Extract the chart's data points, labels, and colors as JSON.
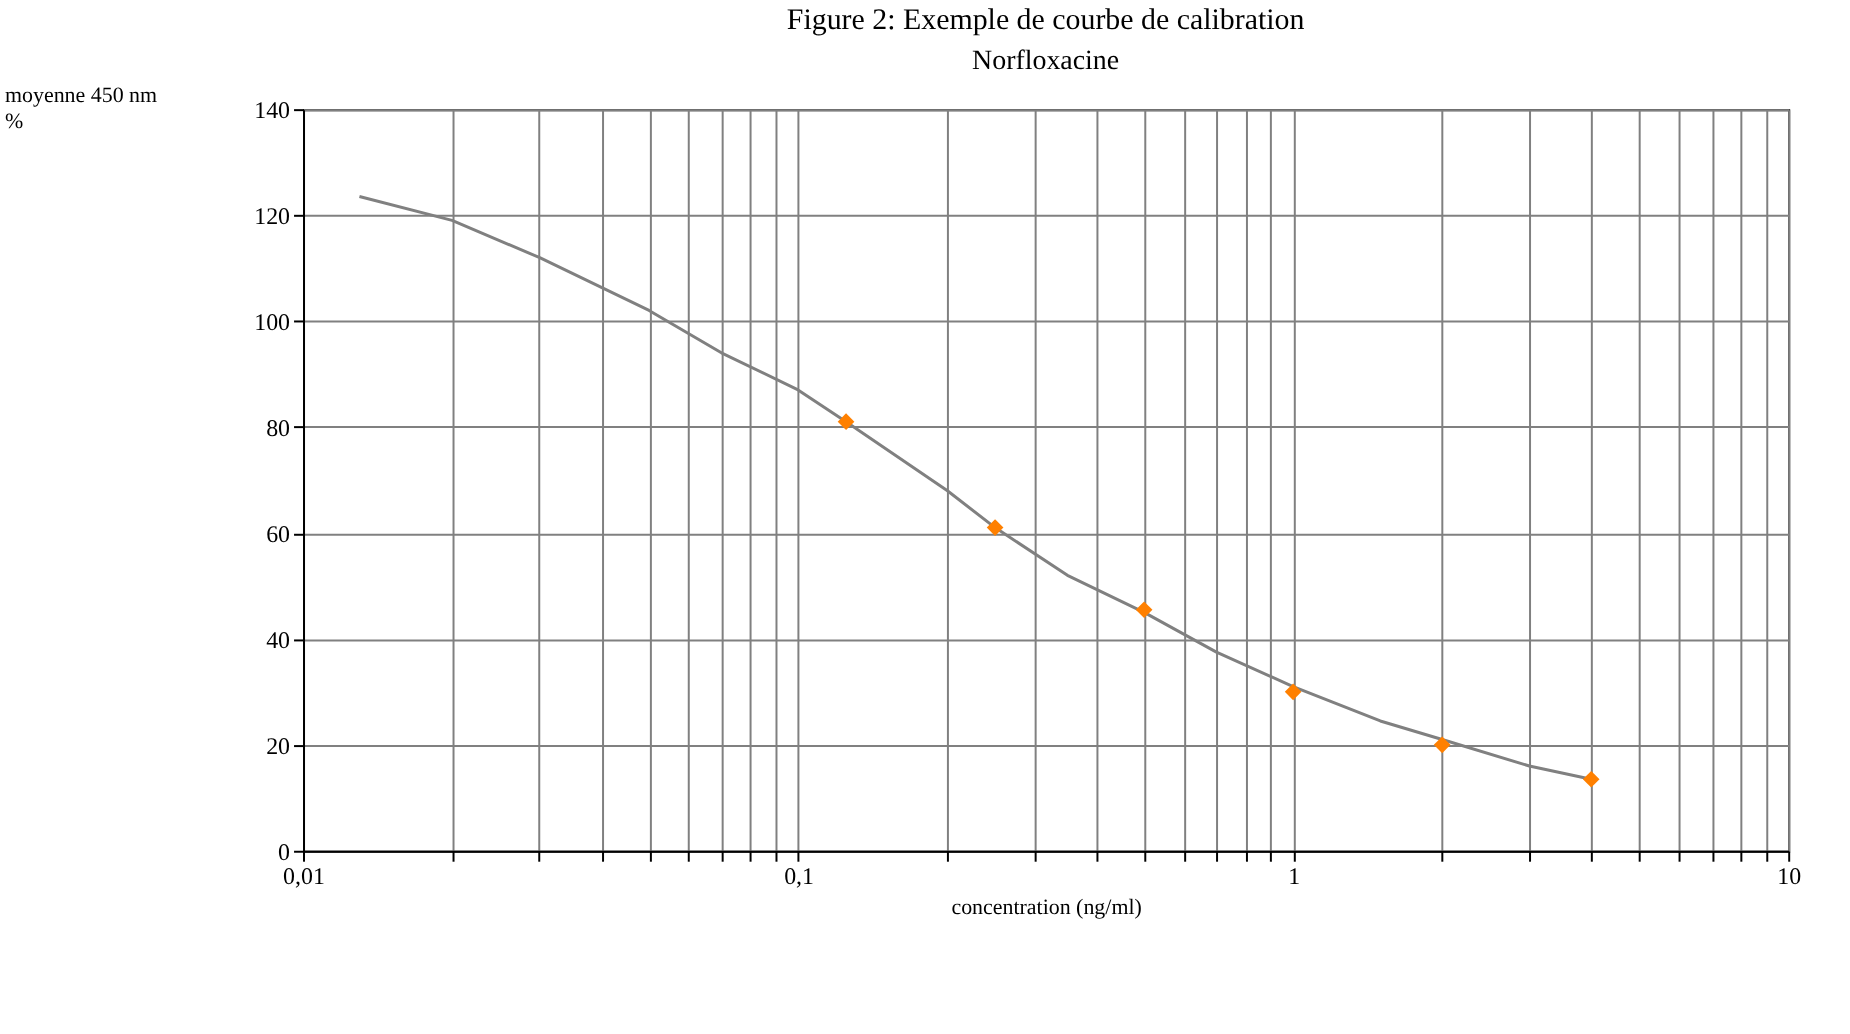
{
  "chart_data": {
    "type": "line",
    "title": "Norfloxacine",
    "annotations": [
      "Figure 2: Exemple de courbe de calibration"
    ],
    "xlabel": "concentration (ng/ml)",
    "ylabel": "moyenne 450 nm\n%",
    "log": "x",
    "grid": true,
    "legend": false,
    "xlim": [
      0.01,
      10
    ],
    "xticks": [
      {
        "value": 0.01,
        "label": "0,01"
      },
      {
        "value": 0.02,
        "label": null
      },
      {
        "value": 0.03,
        "label": null
      },
      {
        "value": 0.04,
        "label": null
      },
      {
        "value": 0.05,
        "label": null
      },
      {
        "value": 0.06,
        "label": null
      },
      {
        "value": 0.07,
        "label": null
      },
      {
        "value": 0.08,
        "label": null
      },
      {
        "value": 0.09,
        "label": null
      },
      {
        "value": 0.1,
        "label": "0,1"
      },
      {
        "value": 0.2,
        "label": null
      },
      {
        "value": 0.3,
        "label": null
      },
      {
        "value": 0.4,
        "label": null
      },
      {
        "value": 0.5,
        "label": null
      },
      {
        "value": 0.6,
        "label": null
      },
      {
        "value": 0.7,
        "label": null
      },
      {
        "value": 0.8,
        "label": null
      },
      {
        "value": 0.9,
        "label": null
      },
      {
        "value": 1,
        "label": "1"
      },
      {
        "value": 2,
        "label": null
      },
      {
        "value": 3,
        "label": null
      },
      {
        "value": 4,
        "label": null
      },
      {
        "value": 5,
        "label": null
      },
      {
        "value": 6,
        "label": null
      },
      {
        "value": 7,
        "label": null
      },
      {
        "value": 8,
        "label": null
      },
      {
        "value": 9,
        "label": null
      },
      {
        "value": 10,
        "label": "10"
      }
    ],
    "ylim": [
      0,
      140
    ],
    "yticks": [
      0,
      20,
      40,
      60,
      80,
      100,
      120,
      140
    ],
    "series": [
      {
        "type": "line",
        "color": "#808080",
        "marker": "none",
        "line_style": "solid",
        "x": [
          0.013,
          0.02,
          0.03,
          0.05,
          0.07,
          0.1,
          0.125,
          0.2,
          0.25,
          0.35,
          0.5,
          0.7,
          1,
          1.5,
          2,
          3,
          4
        ],
        "values": [
          123.5,
          119,
          112,
          102,
          94,
          87,
          81,
          68,
          61,
          52,
          45,
          37.5,
          31,
          24.5,
          21,
          16,
          13.5
        ]
      },
      {
        "type": "scatter",
        "color": "#ff8000",
        "marker": "diamond",
        "x": [
          0.125,
          0.25,
          0.5,
          1,
          2,
          4
        ],
        "values": [
          81,
          61,
          45.5,
          30,
          20,
          13.5
        ]
      }
    ]
  }
}
